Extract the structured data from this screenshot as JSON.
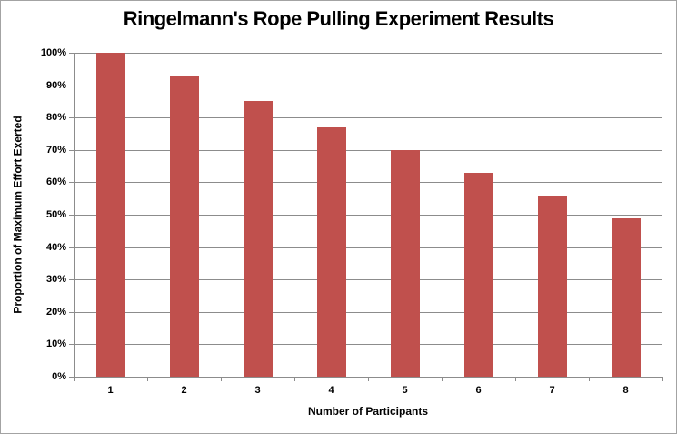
{
  "window": {
    "background": "#FFFFFF",
    "border_color": "#A3A3A3"
  },
  "chart_data": {
    "type": "bar",
    "title": "Ringelmann's Rope Pulling Experiment Results",
    "xlabel": "Number of Participants",
    "ylabel": "Proportion of Maximum Effort Exerted",
    "categories": [
      "1",
      "2",
      "3",
      "4",
      "5",
      "6",
      "7",
      "8"
    ],
    "series": [
      {
        "name": "Proportion of Maximum Effort Exerted",
        "values": [
          100,
          93,
          85,
          77,
          70,
          63,
          56,
          49
        ]
      }
    ],
    "value_unit": "%",
    "ylim": [
      0,
      100
    ],
    "ytick_step": 10,
    "ytick_labels": [
      "0%",
      "10%",
      "20%",
      "30%",
      "40%",
      "50%",
      "60%",
      "70%",
      "80%",
      "90%",
      "100%"
    ],
    "grid": true,
    "legend_position": "none",
    "bar_color": "#C0504D",
    "gridline_color": "#8C8C8C",
    "axis_color": "#8C8C8C",
    "text_color": "#000000"
  }
}
